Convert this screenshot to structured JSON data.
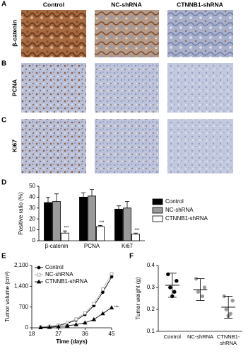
{
  "panel_labels": [
    "A",
    "B",
    "C",
    "D",
    "E",
    "F"
  ],
  "image_grid": {
    "columns": [
      "Control",
      "NC-shRNA",
      "CTNNB1-shRNA"
    ],
    "rows": [
      "β-catenin",
      "PCNA",
      "Ki67"
    ]
  },
  "chart_data": [
    {
      "type": "bar",
      "y_label": "Positive ratio (%)",
      "categories": [
        "β-catenin",
        "PCNA",
        "Ki67"
      ],
      "series": [
        {
          "name": "Control",
          "color": "#000000",
          "values": [
            35,
            40,
            29
          ],
          "errors": [
            5,
            4,
            3
          ]
        },
        {
          "name": "NC-shRNA",
          "color": "#9a9a9a",
          "values": [
            36,
            41,
            30
          ],
          "errors": [
            7,
            6,
            6
          ]
        },
        {
          "name": "CTNNB1-shRNA",
          "color": "#ffffff",
          "values": [
            7,
            13,
            6
          ],
          "errors": [
            2,
            1,
            1
          ]
        }
      ],
      "annotations": [
        "***",
        "***",
        "***"
      ],
      "ylim": [
        0,
        50
      ],
      "yticks": [
        0,
        10,
        20,
        30,
        40,
        50
      ],
      "legend": "right"
    },
    {
      "type": "line",
      "x_label": "Time (days)",
      "y_label": "Tumor volume (cm³)",
      "x": [
        21,
        24,
        27,
        30,
        33,
        36,
        39,
        42,
        45
      ],
      "series": [
        {
          "name": "Control",
          "color": "#000000",
          "marker": "circle",
          "values": [
            20,
            40,
            80,
            150,
            260,
            450,
            750,
            1200,
            1720
          ]
        },
        {
          "name": "NC-shRNA",
          "color": "#9a9a9a",
          "marker": "square",
          "values": [
            25,
            45,
            90,
            170,
            290,
            500,
            820,
            1300,
            1820
          ]
        },
        {
          "name": "CTNNB1-shRNA",
          "color": "#000000",
          "marker": "triangle",
          "values": [
            10,
            20,
            40,
            70,
            110,
            170,
            280,
            480,
            680
          ]
        }
      ],
      "annotation": "***",
      "xlim": [
        18,
        45
      ],
      "xticks": [
        18,
        27,
        36,
        45
      ],
      "ylim": [
        0,
        2100
      ],
      "yticks": [
        0,
        700,
        {
          "value": 1400,
          "label": "1,400"
        },
        {
          "value": 2100,
          "label": "2,100"
        }
      ],
      "legend": "upper left"
    },
    {
      "type": "scatter",
      "y_label": "Tumor weight (g)",
      "categories": [
        "Control",
        "NC-shRNA",
        "CTNNB1-\nshRNA"
      ],
      "colors": [
        "#000000",
        "#9a9a9a",
        "#9a9a9a"
      ],
      "points": [
        [
          0.36,
          0.33,
          0.3,
          0.28,
          0.26
        ],
        [
          0.34,
          0.3,
          0.28,
          0.26
        ],
        [
          0.26,
          0.24,
          0.2,
          0.18,
          0.17
        ]
      ],
      "means": [
        0.31,
        0.29,
        0.21
      ],
      "sds": [
        0.055,
        0.05,
        0.05
      ],
      "ylim": [
        0.1,
        0.4
      ],
      "yticks": [
        0.1,
        0.2,
        0.3,
        0.4
      ]
    }
  ]
}
